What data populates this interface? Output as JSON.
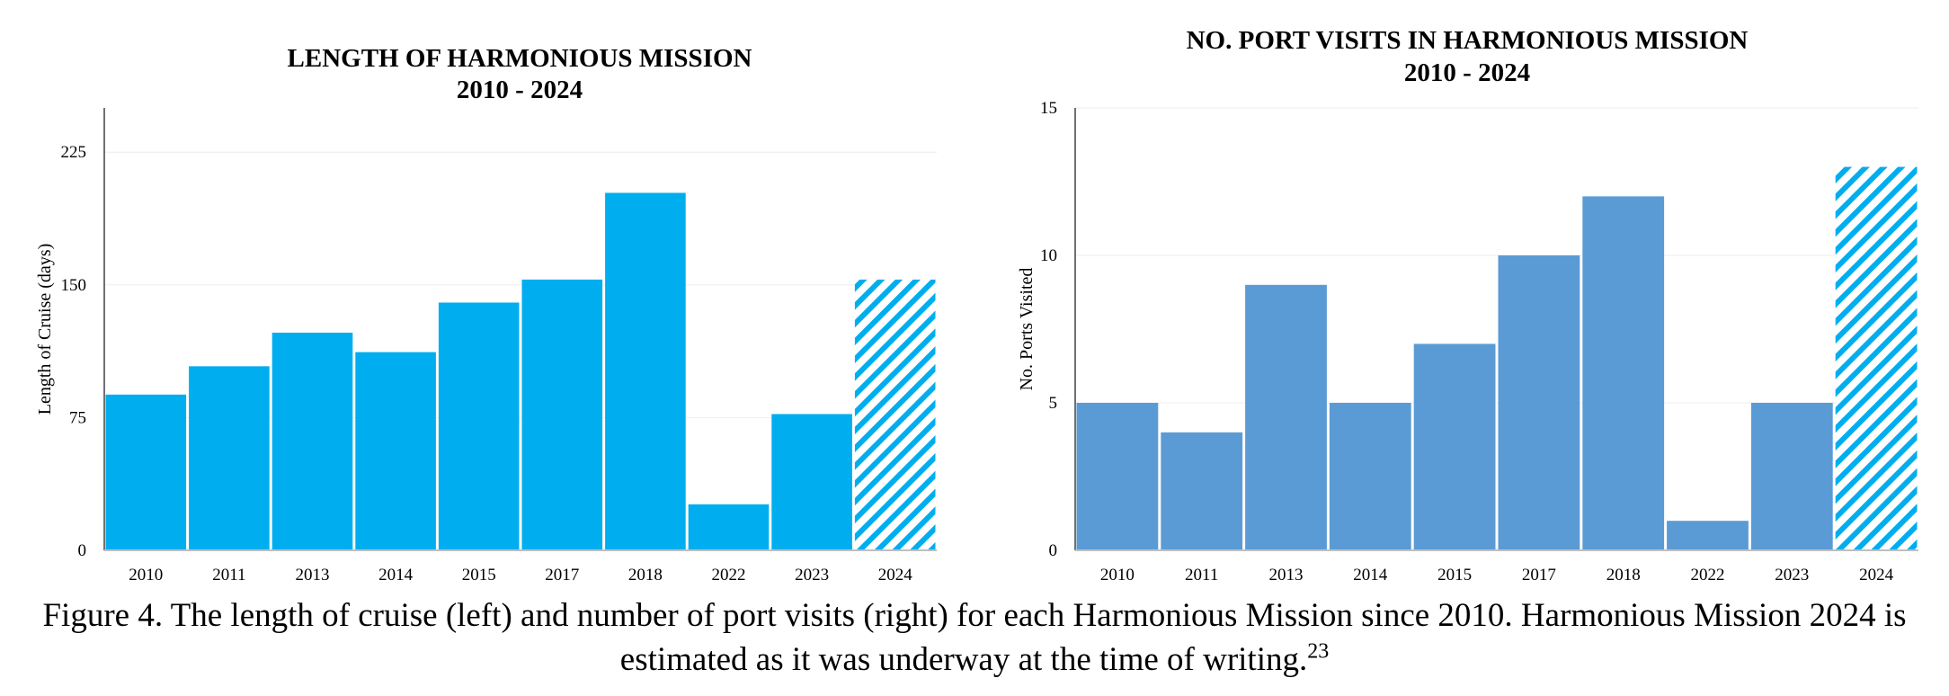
{
  "chart_data": [
    {
      "type": "bar",
      "title": "LENGTH OF HARMONIOUS MISSION",
      "subtitle": "2010 - 2024",
      "xlabel": "",
      "ylabel": "Length of Cruise (days)",
      "categories": [
        "2010",
        "2011",
        "2013",
        "2014",
        "2015",
        "2017",
        "2018",
        "2022",
        "2023",
        "2024"
      ],
      "values": [
        88,
        104,
        123,
        112,
        140,
        153,
        202,
        26,
        77,
        153
      ],
      "estimated": [
        false,
        false,
        false,
        false,
        false,
        false,
        false,
        false,
        false,
        true
      ],
      "ylim": [
        0,
        250
      ],
      "yticks": [
        0,
        75,
        150,
        225
      ],
      "grid": true,
      "colors": {
        "bar": "#00AEEF",
        "estimated": "#00AEEF"
      }
    },
    {
      "type": "bar",
      "title": "NO. PORT VISITS IN HARMONIOUS MISSION",
      "subtitle": "2010 - 2024",
      "xlabel": "",
      "ylabel": "No. Ports Visited",
      "categories": [
        "2010",
        "2011",
        "2013",
        "2014",
        "2015",
        "2017",
        "2018",
        "2022",
        "2023",
        "2024"
      ],
      "values": [
        5,
        4,
        9,
        5,
        7,
        10,
        12,
        1,
        5,
        13
      ],
      "estimated": [
        false,
        false,
        false,
        false,
        false,
        false,
        false,
        false,
        false,
        true
      ],
      "ylim": [
        0,
        15
      ],
      "yticks": [
        0,
        5,
        10,
        15
      ],
      "grid": true,
      "colors": {
        "bar": "#5B9BD5",
        "estimated": "#00AEEF"
      }
    }
  ],
  "caption": {
    "text": "Figure 4. The length of cruise (left) and number of port visits (right) for each Harmonious Mission since 2010. Harmonious Mission 2024 is estimated as it was underway at the time of writing.",
    "footnote": "23"
  }
}
